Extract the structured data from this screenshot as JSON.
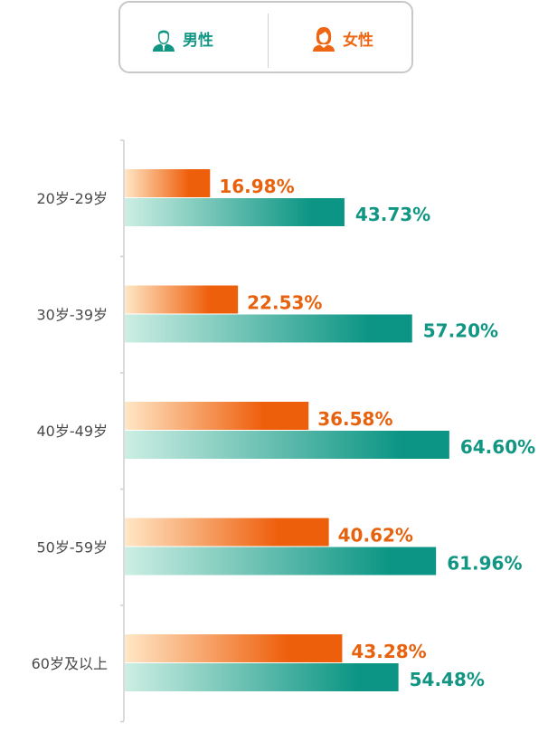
{
  "legend": {
    "male_label": "男性",
    "female_label": "女性",
    "male_icon": "male-user-icon",
    "female_icon": "female-user-icon"
  },
  "colors": {
    "male_dark": "#0c9584",
    "male_light": "#cdeee3",
    "female_dark": "#ee5f0c",
    "female_light": "#ffe7c6"
  },
  "chart_data": {
    "type": "bar",
    "orientation": "horizontal",
    "title": "",
    "xlabel": "",
    "ylabel": "",
    "categories": [
      "20岁-29岁",
      "30岁-39岁",
      "40岁-49岁",
      "50岁-59岁",
      "60岁及以上"
    ],
    "series": [
      {
        "name": "女性",
        "values": [
          16.98,
          22.53,
          36.58,
          40.62,
          43.28
        ],
        "labels": [
          "16.98%",
          "22.53%",
          "36.58%",
          "40.62%",
          "43.28%"
        ]
      },
      {
        "name": "男性",
        "values": [
          43.73,
          57.2,
          64.6,
          61.96,
          54.48
        ],
        "labels": [
          "43.73%",
          "57.20%",
          "64.60%",
          "61.96%",
          "54.48%"
        ]
      }
    ],
    "xlim": [
      0,
      100
    ],
    "grid": false,
    "legend_position": "top"
  }
}
